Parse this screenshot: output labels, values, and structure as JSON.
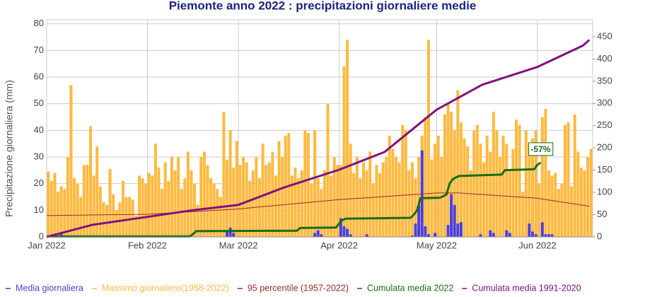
{
  "chart_data": {
    "type": "bar",
    "title": "Piemonte anno 2022 : precipitazioni giornaliere medie",
    "ylabel": "Precipitazione giornaliera (mm)",
    "xlim": [
      0,
      168
    ],
    "xticks": [
      {
        "value": 0,
        "label": "Jan 2022"
      },
      {
        "value": 31,
        "label": "Feb 2022"
      },
      {
        "value": 59,
        "label": "Mar 2022"
      },
      {
        "value": 90,
        "label": "Apr 2022"
      },
      {
        "value": 120,
        "label": "May 2022"
      },
      {
        "value": 151,
        "label": "Jun 2022"
      }
    ],
    "ylim": [
      0,
      81.5
    ],
    "yticks": [
      0,
      10,
      20,
      30,
      40,
      50,
      60,
      70,
      80
    ],
    "y2lim": [
      0,
      488
    ],
    "y2ticks": [
      0,
      50,
      100,
      150,
      200,
      250,
      300,
      350,
      400,
      450
    ],
    "grid": true,
    "legend": "bottom",
    "series": [
      {
        "name": "Massimo giornaliero(1958-2022)",
        "type": "bar",
        "color": "#ffb940",
        "x": [
          0,
          1,
          2,
          3,
          4,
          5,
          6,
          7,
          8,
          9,
          10,
          11,
          12,
          13,
          14,
          15,
          16,
          17,
          18,
          19,
          20,
          21,
          22,
          23,
          24,
          25,
          26,
          27,
          28,
          29,
          30,
          31,
          32,
          33,
          34,
          35,
          36,
          37,
          38,
          39,
          40,
          41,
          42,
          43,
          44,
          45,
          46,
          47,
          48,
          49,
          50,
          51,
          52,
          53,
          54,
          55,
          56,
          57,
          58,
          59,
          60,
          61,
          62,
          63,
          64,
          65,
          66,
          67,
          68,
          69,
          70,
          71,
          72,
          73,
          74,
          75,
          76,
          77,
          78,
          79,
          80,
          81,
          82,
          83,
          84,
          85,
          86,
          87,
          88,
          89,
          90,
          91,
          92,
          93,
          94,
          95,
          96,
          97,
          98,
          99,
          100,
          101,
          102,
          103,
          104,
          105,
          106,
          107,
          108,
          109,
          110,
          111,
          112,
          113,
          114,
          115,
          116,
          117,
          118,
          119,
          120,
          121,
          122,
          123,
          124,
          125,
          126,
          127,
          128,
          129,
          130,
          131,
          132,
          133,
          134,
          135,
          136,
          137,
          138,
          139,
          140,
          141,
          142,
          143,
          144,
          145,
          146,
          147,
          148,
          149,
          150,
          151,
          152,
          153,
          154,
          155,
          156,
          157,
          158,
          159,
          160,
          161,
          162,
          163,
          164,
          165,
          166,
          167
        ],
        "values": [
          24.5,
          21,
          24,
          17,
          19,
          18,
          30,
          57,
          22,
          20,
          15,
          27,
          27,
          41.5,
          23,
          34,
          19,
          13,
          12,
          25.5,
          16,
          10,
          13,
          21,
          15,
          15,
          14,
          8,
          23,
          22,
          20,
          24,
          23,
          35,
          26,
          18,
          28,
          21,
          30,
          25,
          30,
          18,
          22,
          32,
          25,
          20,
          12,
          30,
          32,
          27,
          22,
          20,
          18,
          15,
          47,
          29,
          40,
          26,
          36,
          27,
          30,
          28,
          21,
          25,
          30,
          22,
          35,
          27,
          28,
          32,
          23,
          36,
          30,
          38,
          39,
          23,
          26,
          22,
          25,
          40,
          39,
          20,
          40,
          22,
          18,
          25,
          50,
          23,
          30,
          27,
          27,
          64,
          74,
          35,
          24,
          30,
          22,
          28,
          25,
          32,
          20,
          27,
          24,
          28,
          30,
          38,
          33,
          30,
          28,
          42,
          40,
          25,
          28,
          22,
          30,
          38,
          45,
          74,
          29,
          35,
          38,
          30,
          46,
          50,
          47,
          40,
          55,
          43,
          37,
          34,
          25,
          40,
          42,
          35,
          28,
          38,
          32,
          47,
          40,
          30,
          38,
          35,
          25,
          33,
          44,
          42,
          17,
          40,
          35,
          37,
          40,
          20,
          45,
          48,
          25,
          23,
          24,
          18,
          20,
          42,
          43,
          19,
          46,
          32,
          26,
          25,
          30,
          33
        ]
      },
      {
        "name": "Media giornaliera",
        "type": "bar",
        "color": "#4b3fd8",
        "x": [
          0,
          1,
          2,
          3,
          4,
          5,
          6,
          7,
          8,
          9,
          10,
          11,
          12,
          13,
          14,
          15,
          16,
          17,
          18,
          19,
          20,
          21,
          22,
          23,
          24,
          25,
          26,
          27,
          28,
          29,
          30,
          31,
          32,
          33,
          34,
          35,
          36,
          37,
          38,
          39,
          40,
          41,
          42,
          43,
          44,
          45,
          46,
          47,
          48,
          49,
          50,
          51,
          52,
          53,
          54,
          55,
          56,
          57,
          58,
          59,
          60,
          61,
          62,
          63,
          64,
          65,
          66,
          67,
          68,
          69,
          70,
          71,
          72,
          73,
          74,
          75,
          76,
          77,
          78,
          79,
          80,
          81,
          82,
          83,
          84,
          85,
          86,
          87,
          88,
          89,
          90,
          91,
          92,
          93,
          94,
          95,
          96,
          97,
          98,
          99,
          100,
          101,
          102,
          103,
          104,
          105,
          106,
          107,
          108,
          109,
          110,
          111,
          112,
          113,
          114,
          115,
          116,
          117,
          118,
          119,
          120,
          121,
          122,
          123,
          124,
          125,
          126,
          127,
          128,
          129,
          130,
          131,
          132,
          133,
          134,
          135,
          136,
          137,
          138,
          139,
          140,
          141,
          142,
          143,
          144,
          145,
          146,
          147,
          148,
          149,
          150,
          151,
          152,
          153,
          154,
          155,
          156,
          157,
          158,
          159,
          160,
          161,
          162,
          163,
          164,
          165,
          166,
          167
        ],
        "values": [
          0,
          0,
          0,
          0,
          1.5,
          0,
          0,
          0,
          0,
          0.5,
          0,
          0,
          0,
          0,
          0,
          0,
          0,
          0,
          0,
          0,
          0,
          0,
          0,
          0,
          0,
          0,
          0,
          0,
          0,
          0,
          0,
          0,
          0,
          0,
          0,
          0,
          0,
          0,
          0,
          0,
          0,
          0,
          0,
          0,
          0,
          0,
          0,
          0,
          0,
          0,
          0,
          0,
          0,
          0,
          0,
          2.5,
          3.5,
          1.5,
          0,
          0,
          0,
          0,
          0,
          0,
          0,
          0,
          0,
          0,
          0,
          0,
          0,
          0,
          0,
          0,
          0,
          0,
          0,
          0,
          0,
          0,
          0,
          0,
          1.5,
          2.5,
          1,
          0,
          0,
          0,
          0,
          0,
          7,
          4,
          3,
          1,
          0,
          0,
          0,
          0,
          1,
          0,
          0,
          0,
          0,
          0,
          0,
          0,
          0,
          0,
          0,
          0,
          0,
          0,
          0.5,
          5,
          12,
          32.5,
          4,
          1,
          0,
          1.5,
          0,
          0,
          0,
          4.5,
          16,
          12,
          5,
          5.5,
          0,
          0,
          0,
          0,
          0,
          1,
          0,
          0,
          2.5,
          1.5,
          0,
          0,
          0,
          2.5,
          1.5,
          0,
          0,
          0,
          0,
          0,
          5,
          2,
          1,
          0,
          5.5,
          1,
          1,
          1,
          0,
          0,
          0,
          0,
          0,
          0,
          0,
          0,
          0,
          0,
          0,
          0
        ]
      },
      {
        "name": "95 percentile (1957-2022)",
        "type": "line",
        "color": "#a02828",
        "width": 1,
        "x": [
          0,
          31,
          59,
          90,
          120,
          127,
          151,
          167
        ],
        "values": [
          8,
          8.5,
          10.5,
          14,
          16.5,
          16.5,
          14.5,
          11.5
        ]
      },
      {
        "name": "Cumulata media 2022",
        "type": "line",
        "color": "#1a6b12",
        "width": 3,
        "axis": "y2",
        "x": [
          0,
          44,
          45,
          46,
          77,
          78,
          89,
          90,
          91,
          92,
          112,
          113,
          114,
          115,
          121,
          123,
          124,
          125,
          126,
          127,
          140,
          141,
          150,
          151,
          152
        ],
        "values": [
          1,
          1,
          6,
          13,
          14,
          20,
          21,
          30,
          38,
          41,
          43,
          50,
          60,
          87,
          88,
          95,
          120,
          130,
          134,
          137,
          140,
          150,
          152,
          162,
          167
        ]
      },
      {
        "name": "Cumulata media 1991-2020",
        "type": "line",
        "color": "#80117f",
        "width": 3,
        "axis": "y2",
        "x": [
          0,
          14,
          31,
          45,
          59,
          73,
          90,
          104,
          120,
          134,
          151,
          165,
          167
        ],
        "values": [
          0,
          27,
          45,
          60,
          72,
          111,
          151,
          191,
          286,
          342,
          382,
          430,
          443
        ]
      }
    ],
    "annotations": [
      {
        "text": "-57%",
        "x": 152,
        "y": 196,
        "axis": "y2",
        "color": "#1a6b12"
      }
    ]
  }
}
